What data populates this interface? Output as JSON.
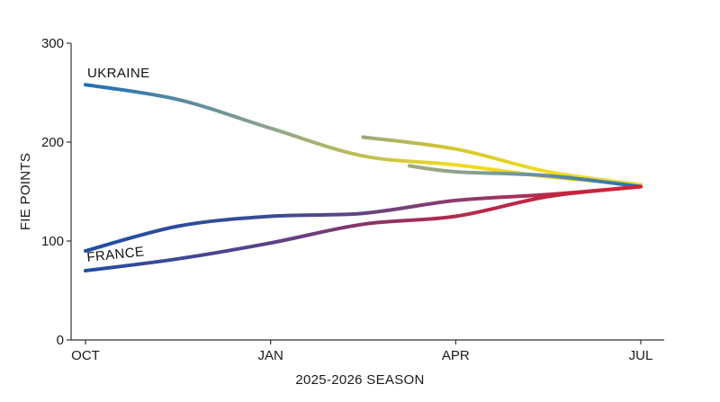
{
  "chart_data": {
    "type": "line",
    "xlabel": "2025-2026 SEASON",
    "ylabel": "FIE POINTS",
    "x_ticks": [
      "OCT",
      "JAN",
      "APR",
      "JUL"
    ],
    "y_ticks": [
      0,
      100,
      200,
      300
    ],
    "ylim": [
      0,
      300
    ],
    "grid": false,
    "colors": {
      "ukraine_start": "#1d6db8",
      "ukraine_mid": "#8ea48c",
      "ukraine_end": "#f2db1c",
      "france_start": "#1f4ea3",
      "france_mid": "#6a3e7f",
      "france_end": "#d42135"
    },
    "series": [
      {
        "name": "UKRAINE",
        "group": "ukraine",
        "gradient": [
          "#1d6db8",
          "#8ea48c",
          "#f2db1c",
          "#efd22a"
        ],
        "x": [
          0,
          0.5,
          1.0,
          1.5,
          2.0,
          2.5,
          3.0
        ],
        "y": [
          258,
          243,
          214,
          186,
          177,
          165,
          157
        ]
      },
      {
        "name": "",
        "group": "ukraine",
        "gradient": [
          "#9aa97e",
          "#d6c82e",
          "#f2db1c",
          "#e5d94a"
        ],
        "x": [
          1.5,
          2.0,
          2.5,
          3.0
        ],
        "y": [
          205,
          193,
          170,
          157
        ]
      },
      {
        "name": "",
        "group": "ukraine",
        "gradient": [
          "#a2ab76",
          "#6e95a4",
          "#1f6fb8"
        ],
        "x": [
          1.75,
          2.0,
          2.5,
          3.0
        ],
        "y": [
          176,
          170,
          166,
          155
        ]
      },
      {
        "name": "",
        "group": "france",
        "gradient": [
          "#1f4ea3",
          "#3a4c93",
          "#8d3a6e",
          "#d42135"
        ],
        "x": [
          0,
          0.5,
          1.0,
          1.5,
          2.0,
          2.5,
          3.0
        ],
        "y": [
          90,
          115,
          125,
          128,
          141,
          147,
          155
        ]
      },
      {
        "name": "FRANCE",
        "group": "france",
        "gradient": [
          "#1f4ea3",
          "#5b4189",
          "#b22a4d",
          "#d42135"
        ],
        "x": [
          0,
          0.5,
          1.0,
          1.5,
          2.0,
          2.5,
          3.0
        ],
        "y": [
          70,
          82,
          98,
          117,
          125,
          145,
          155
        ]
      }
    ]
  }
}
